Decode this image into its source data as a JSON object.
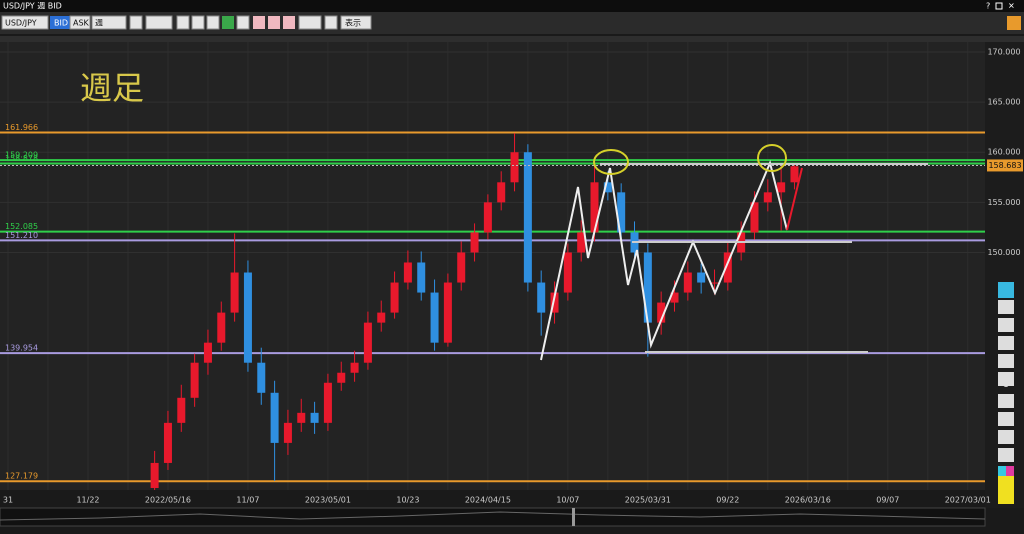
{
  "toolbar": {
    "header": "USD/JPY 週 BID",
    "symbol": "USD/JPY",
    "bid": "BID",
    "ask": "ASK",
    "period": "週",
    "view": "表示",
    "help": "?"
  },
  "chart_data": {
    "type": "candlestick",
    "title": "週足",
    "up_color": "#e8192c",
    "down_color": "#2f8fe0",
    "categories": [
      "31",
      null,
      null,
      null,
      null,
      null,
      "11/22",
      null,
      null,
      null,
      null,
      null,
      "2022/05/16",
      null,
      null,
      null,
      null,
      null,
      "11/07",
      null,
      null,
      null,
      null,
      null,
      "2023/05/01",
      null,
      null,
      null,
      null,
      null,
      "10/23",
      null,
      null,
      null,
      null,
      null,
      "2024/04/15",
      null,
      null,
      null,
      null,
      null,
      "10/07",
      null,
      null,
      null,
      null,
      null,
      "2025/03/31",
      null,
      null,
      null,
      null,
      null,
      "09/22",
      null,
      null,
      null,
      null,
      null,
      "2026/03/16",
      null,
      null,
      null,
      null,
      null,
      "09/07",
      null,
      null,
      null,
      null,
      null,
      "2027/03/01",
      null
    ],
    "open": [
      null,
      null,
      null,
      null,
      null,
      null,
      null,
      null,
      null,
      null,
      null,
      126.5,
      129,
      133,
      135.5,
      139,
      141,
      144,
      148,
      139,
      136,
      131,
      133,
      134,
      133,
      137,
      138,
      139,
      143,
      144,
      147,
      149,
      146,
      141,
      147,
      150,
      152,
      155,
      157,
      160,
      147,
      144,
      146,
      150,
      152,
      157,
      156,
      152,
      150,
      143,
      145,
      146,
      148,
      147,
      147,
      150,
      152,
      155,
      156,
      157,
      null,
      null,
      null,
      null,
      null,
      null,
      null,
      null,
      null,
      null,
      null,
      null,
      null,
      null
    ],
    "high": [
      null,
      null,
      null,
      null,
      null,
      null,
      null,
      null,
      null,
      null,
      null,
      130.2,
      134.2,
      136.8,
      139.9,
      142.3,
      145.1,
      151.9,
      149.2,
      140.5,
      137.2,
      134.3,
      135.4,
      135.1,
      137.9,
      139.1,
      140.2,
      144.1,
      145.2,
      148.1,
      150.2,
      150.1,
      147.3,
      147.9,
      151.1,
      152.9,
      155.8,
      158.1,
      161.9,
      160.8,
      148.2,
      147.1,
      150.9,
      153.2,
      158.9,
      158.1,
      156.9,
      153.1,
      150.9,
      146.1,
      147.2,
      149.1,
      148.9,
      148.3,
      151.1,
      153.1,
      156.1,
      157.3,
      158.8,
      158.9,
      null,
      null,
      null,
      null,
      null,
      null,
      null,
      null,
      null,
      null,
      null,
      null,
      null,
      null
    ],
    "low": [
      null,
      null,
      null,
      null,
      null,
      null,
      null,
      null,
      null,
      null,
      null,
      125.8,
      128.3,
      132.1,
      134.6,
      137.8,
      140.2,
      143.1,
      138.1,
      134.8,
      127.2,
      129.8,
      132.1,
      131.9,
      132.2,
      136.2,
      137.1,
      138.3,
      142.1,
      143.4,
      146.3,
      145.2,
      140.2,
      140.6,
      146.2,
      149.1,
      151.3,
      154.2,
      156.1,
      146.1,
      141.7,
      142.9,
      145.2,
      149.1,
      151.1,
      155.2,
      151.1,
      149.2,
      139.6,
      141.8,
      144.1,
      145.2,
      145.9,
      145.8,
      146.2,
      149.2,
      151.3,
      154.1,
      152.2,
      156.3,
      null,
      null,
      null,
      null,
      null,
      null,
      null,
      null,
      null,
      null,
      null,
      null,
      null,
      null
    ],
    "close": [
      null,
      null,
      null,
      null,
      null,
      null,
      null,
      null,
      null,
      null,
      null,
      129,
      133,
      135.5,
      139,
      141,
      144,
      148,
      139,
      136,
      131,
      133,
      134,
      133,
      137,
      138,
      139,
      143,
      144,
      147,
      149,
      146,
      141,
      147,
      150,
      152,
      155,
      157,
      160,
      147,
      144,
      146,
      150,
      152,
      157,
      156,
      152,
      150,
      143,
      145,
      146,
      148,
      147,
      147,
      150,
      152,
      155,
      156,
      157,
      158.6,
      null,
      null,
      null,
      null,
      null,
      null,
      null,
      null,
      null,
      null,
      null,
      null,
      null,
      null
    ],
    "ylim": [
      126.3,
      171
    ],
    "yticks": [
      {
        "value": 150,
        "label": "150.000"
      },
      {
        "value": 155,
        "label": "155.000"
      },
      {
        "value": 160,
        "label": "160.000"
      },
      {
        "value": 165,
        "label": "165.000"
      },
      {
        "value": 170,
        "label": "170.000"
      }
    ],
    "levels": [
      {
        "value": 161.966,
        "label": "161.966",
        "color": "#e89a2c"
      },
      {
        "value": 159.209,
        "label": "159.209",
        "color": "#2fd04a"
      },
      {
        "value": 158.878,
        "label": "158.878",
        "color": "#2fd04a"
      },
      {
        "value": 152.085,
        "label": "152.085",
        "color": "#2fd04a"
      },
      {
        "value": 151.21,
        "label": "151.210",
        "color": "#a99be0"
      },
      {
        "value": 139.954,
        "label": "139.954",
        "color": "#a99be0"
      },
      {
        "value": 127.179,
        "label": "127.179",
        "color": "#e89a2c"
      }
    ],
    "last_price": {
      "value": 158.683,
      "label": "158.683",
      "color": "#e89a2c"
    }
  }
}
